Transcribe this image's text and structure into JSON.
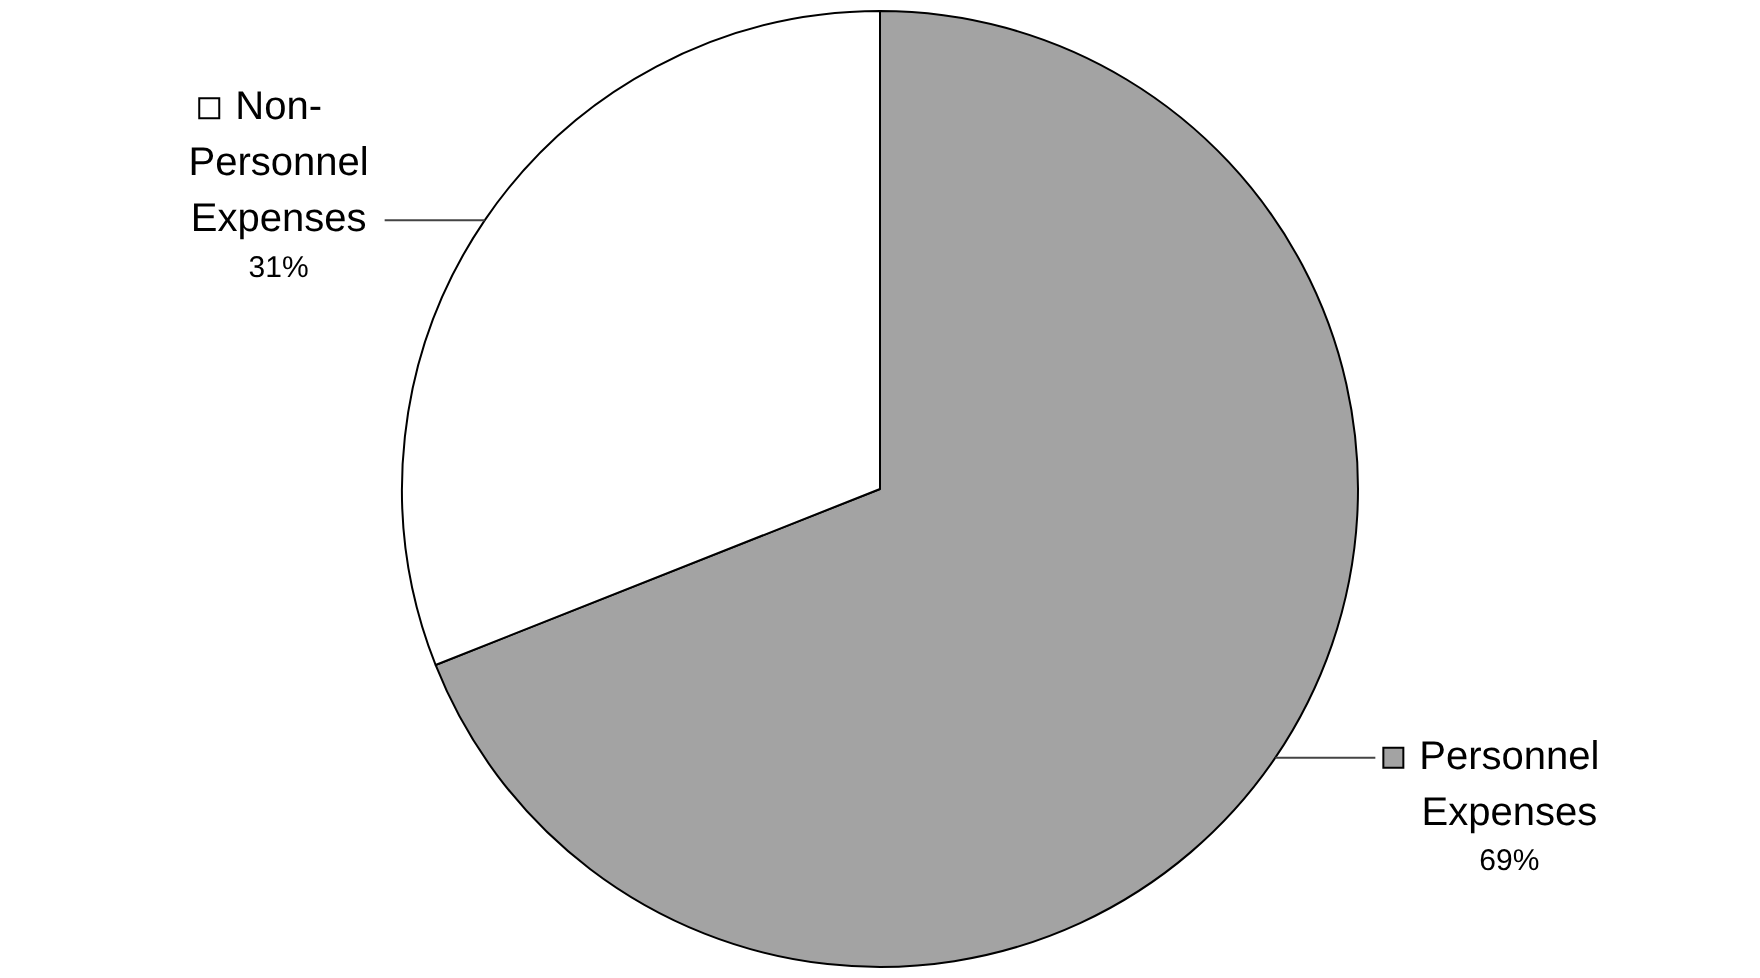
{
  "chart_data": {
    "type": "pie",
    "categories": [
      "Personnel Expenses",
      "Non-Personnel Expenses"
    ],
    "values": [
      69,
      31
    ],
    "colors": [
      "#a3a3a3",
      "#ffffff"
    ],
    "value_labels": [
      "69%",
      "31%"
    ],
    "legend": "right"
  }
}
